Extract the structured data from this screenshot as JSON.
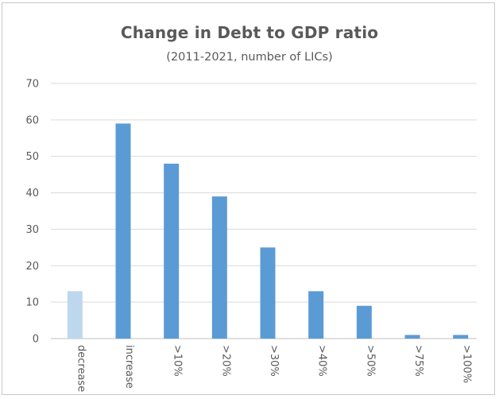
{
  "chart_data": {
    "type": "bar",
    "title": "Change in Debt to GDP ratio",
    "subtitle": "(2011-2021, number of LICs)",
    "categories": [
      "decrease",
      "increase",
      ">10%",
      ">20%",
      ">30%",
      ">40%",
      ">50%",
      ">75%",
      ">100%"
    ],
    "values": [
      13,
      59,
      48,
      39,
      25,
      13,
      9,
      1,
      1
    ],
    "bar_colors": [
      "#bdd7ee",
      "#5b9bd5",
      "#5b9bd5",
      "#5b9bd5",
      "#5b9bd5",
      "#5b9bd5",
      "#5b9bd5",
      "#5b9bd5",
      "#5b9bd5"
    ],
    "ylim": [
      0,
      70
    ],
    "yticks": [
      "0",
      "10",
      "20",
      "30",
      "40",
      "50",
      "60",
      "70"
    ],
    "grid": true,
    "legend": "none",
    "xlabel": "",
    "ylabel": ""
  }
}
